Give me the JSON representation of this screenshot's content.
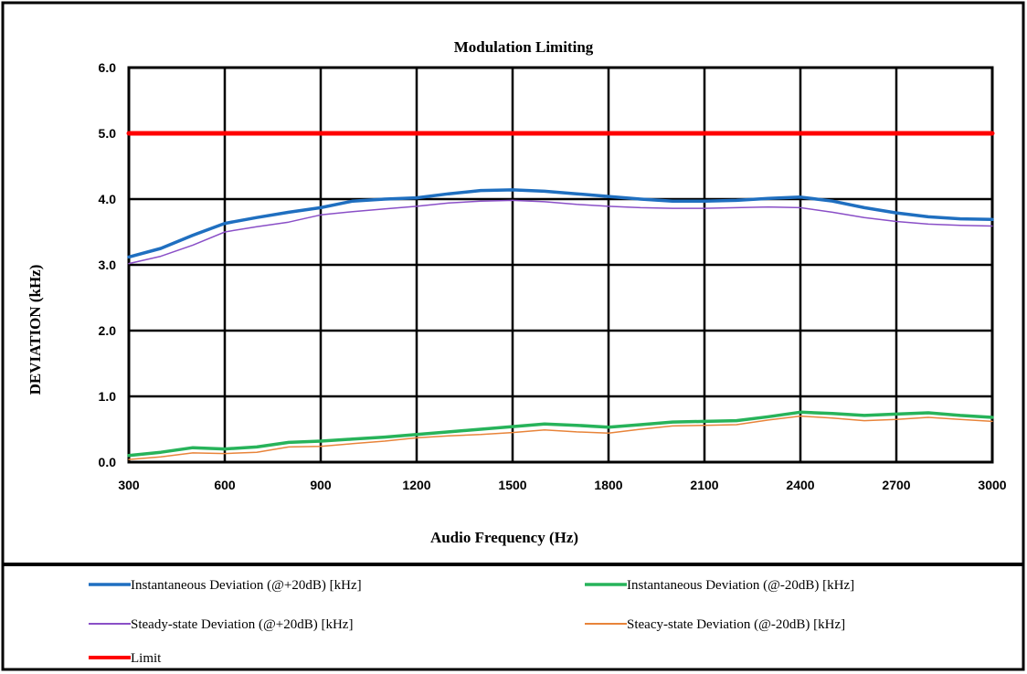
{
  "chart_data": {
    "type": "line",
    "title": "Modulation Limiting",
    "xlabel": "Audio Frequency (Hz)",
    "ylabel": "DEVIATION (kHz)",
    "xlim": [
      300,
      3000
    ],
    "ylim": [
      0,
      6
    ],
    "grid": true,
    "x_ticks": [
      "300",
      "600",
      "900",
      "1200",
      "1500",
      "1800",
      "2100",
      "2400",
      "2700",
      "3000"
    ],
    "y_ticks": [
      "0.0",
      "1.0",
      "2.0",
      "3.0",
      "4.0",
      "5.0",
      "6.0"
    ],
    "legend_position": "bottom",
    "x": [
      300,
      400,
      500,
      600,
      700,
      800,
      900,
      1000,
      1100,
      1200,
      1300,
      1400,
      1500,
      1600,
      1700,
      1800,
      1900,
      2000,
      2100,
      2200,
      2300,
      2400,
      2500,
      2600,
      2700,
      2800,
      2900,
      3000
    ],
    "series": [
      {
        "name": "Instantaneous Deviation (@+20dB) [kHz]",
        "color": "#1f6fc0",
        "values": [
          3.12,
          3.25,
          3.45,
          3.63,
          3.72,
          3.8,
          3.87,
          3.97,
          4.0,
          4.02,
          4.08,
          4.13,
          4.14,
          4.12,
          4.08,
          4.04,
          4.0,
          3.97,
          3.97,
          3.98,
          4.01,
          4.03,
          3.97,
          3.87,
          3.79,
          3.73,
          3.7,
          3.69
        ]
      },
      {
        "name": "Instantaneous Deviation (@-20dB) [kHz]",
        "color": "#27b35a",
        "values": [
          0.1,
          0.15,
          0.22,
          0.2,
          0.23,
          0.3,
          0.32,
          0.35,
          0.38,
          0.42,
          0.46,
          0.5,
          0.54,
          0.58,
          0.56,
          0.53,
          0.57,
          0.61,
          0.62,
          0.63,
          0.69,
          0.76,
          0.74,
          0.71,
          0.73,
          0.75,
          0.71,
          0.68
        ]
      },
      {
        "name": "Steady-state Deviation (@+20dB) [kHz]",
        "color": "#8a4fc7",
        "values": [
          3.02,
          3.13,
          3.3,
          3.5,
          3.58,
          3.65,
          3.76,
          3.81,
          3.85,
          3.89,
          3.94,
          3.97,
          3.98,
          3.96,
          3.92,
          3.89,
          3.87,
          3.86,
          3.86,
          3.87,
          3.88,
          3.87,
          3.8,
          3.72,
          3.66,
          3.62,
          3.6,
          3.59
        ]
      },
      {
        "name": "Steacy-state Deviation (@-20dB) [kHz]",
        "color": "#e8843a",
        "values": [
          0.04,
          0.08,
          0.14,
          0.13,
          0.15,
          0.23,
          0.24,
          0.28,
          0.32,
          0.37,
          0.4,
          0.42,
          0.45,
          0.49,
          0.46,
          0.44,
          0.5,
          0.55,
          0.56,
          0.57,
          0.64,
          0.7,
          0.67,
          0.63,
          0.65,
          0.68,
          0.65,
          0.62
        ]
      },
      {
        "name": "Limit",
        "color": "#ff0000",
        "values": [
          5,
          5,
          5,
          5,
          5,
          5,
          5,
          5,
          5,
          5,
          5,
          5,
          5,
          5,
          5,
          5,
          5,
          5,
          5,
          5,
          5,
          5,
          5,
          5,
          5,
          5,
          5,
          5
        ]
      }
    ]
  }
}
